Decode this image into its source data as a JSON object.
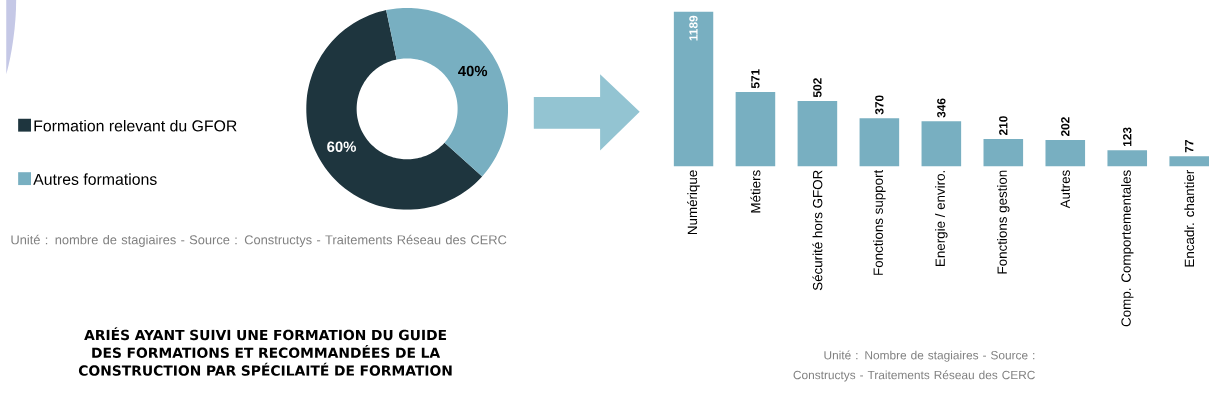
{
  "chart_data": [
    {
      "type": "donut",
      "categories": [
        "Formation relevant du GFOR",
        "Autres formations"
      ],
      "values": [
        60,
        40
      ],
      "colors": [
        "#1e353e",
        "#78afc1"
      ],
      "value_labels": [
        "60%",
        "40%"
      ],
      "legend": "left",
      "annotations": [
        "Unité : nombre de stagiaires - Source : Constructys - Traitements Réseau des CERC",
        "ARIÉS AYANT SUIVI UNE FORMATION DU GUIDE DES FORMATIONS ET RECOMMANDÉES DE LA CONSTRUCTION PAR SPÉCILAITÉ DE FORMATION"
      ]
    },
    {
      "type": "bar",
      "categories": [
        "Numérique",
        "Métiers",
        "Sécurité hors GFOR",
        "Fonctions support",
        "Energie / enviro.",
        "Fonctions gestion",
        "Autres",
        "Comp. Comportementales",
        "Encadr. chantier"
      ],
      "values": [
        1189,
        571,
        502,
        370,
        346,
        210,
        202,
        123,
        77
      ],
      "color": "#78afc1",
      "data_labels": true,
      "annotations": [
        "Unité : Nombre de stagiaires - Source : Constructys - Traitements Réseau des CERC"
      ]
    }
  ]
}
